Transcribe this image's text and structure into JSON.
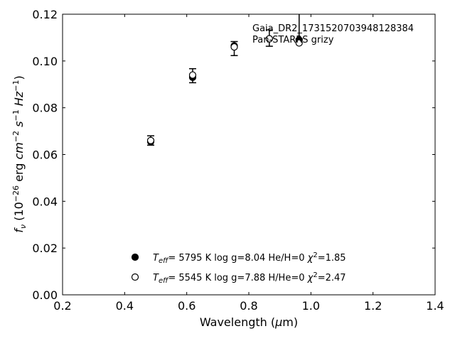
{
  "chart_data": {
    "type": "scatter",
    "title": "",
    "xlabel": "Wavelength (µm)",
    "ylabel": "fν (10⁻²⁶ erg cm⁻² s⁻¹ Hz⁻¹)",
    "xlim": [
      0.2,
      1.4
    ],
    "ylim": [
      0.0,
      0.12
    ],
    "xticks": [
      "0.2",
      "0.4",
      "0.6",
      "0.8",
      "1.0",
      "1.2",
      "1.4"
    ],
    "yticks": [
      "0.00",
      "0.02",
      "0.04",
      "0.06",
      "0.08",
      "0.10",
      "0.12"
    ],
    "annotation": {
      "line1": "Gaia_DR2_1731520703948128384",
      "line2": "Pan-STARRS grizy"
    },
    "observed": {
      "x": [
        0.484,
        0.619,
        0.753,
        0.866,
        0.962
      ],
      "y": [
        0.066,
        0.0937,
        0.1053,
        0.1098,
        0.1215
      ],
      "yerr": [
        0.002,
        0.003,
        0.003,
        0.0035,
        0.012
      ]
    },
    "series": [
      {
        "marker": "filled",
        "teff": "5795 K",
        "logg": "log g=8.04",
        "comp": "He/H=0",
        "chi2": "1.85",
        "x": [
          0.484,
          0.619,
          0.753,
          0.866,
          0.962
        ],
        "y": [
          0.0655,
          0.093,
          0.1065,
          0.1095,
          0.109
        ]
      },
      {
        "marker": "open",
        "teff": "5545 K",
        "logg": "log g=7.88",
        "comp": "H/He=0",
        "chi2": "2.47",
        "x": [
          0.484,
          0.619,
          0.753,
          0.866,
          0.962
        ],
        "y": [
          0.066,
          0.094,
          0.106,
          0.1095,
          0.1077
        ]
      }
    ],
    "grid": false,
    "legend_position": "bottom-center"
  }
}
